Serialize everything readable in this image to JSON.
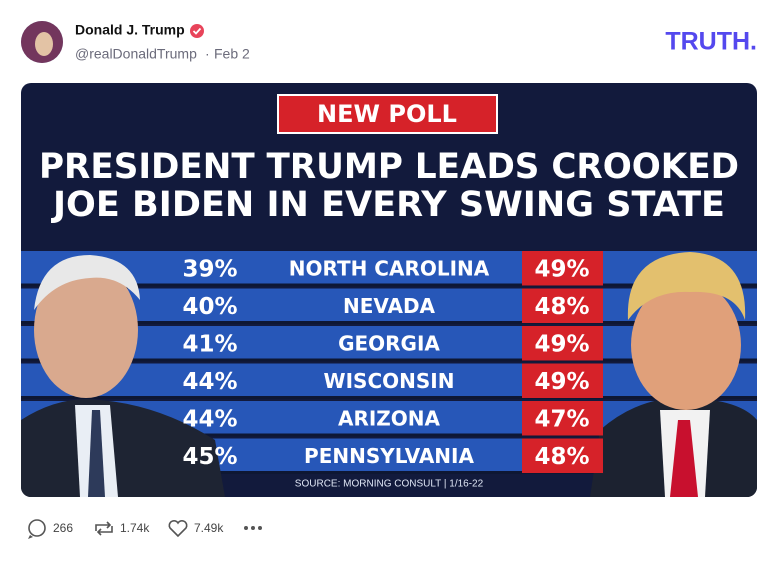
{
  "post": {
    "author": "Donald J. Trump",
    "handle": "@realDonaldTrump",
    "separator": "·",
    "date": "Feb 2",
    "logo": "TRUTH.",
    "image": {
      "badge": "NEW POLL",
      "headline": [
        "PRESIDENT TRUMP LEADS CROOKED",
        "JOE BIDEN IN EVERY SWING STATE"
      ],
      "rows": [
        [
          "39%",
          "NORTH CAROLINA",
          "49%"
        ],
        [
          "40%",
          "NEVADA",
          "48%"
        ],
        [
          "41%",
          "GEORGIA",
          "49%"
        ],
        [
          "44%",
          "WISCONSIN",
          "49%"
        ],
        [
          "44%",
          "ARIZONA",
          "47%"
        ],
        [
          "45%",
          "PENNSYLVANIA",
          "48%"
        ]
      ],
      "source": "SOURCE: MORNING CONSULT | 1/16-22"
    },
    "stats": {
      "replies": "266",
      "reposts": "1.74k",
      "likes": "7.49k"
    }
  }
}
